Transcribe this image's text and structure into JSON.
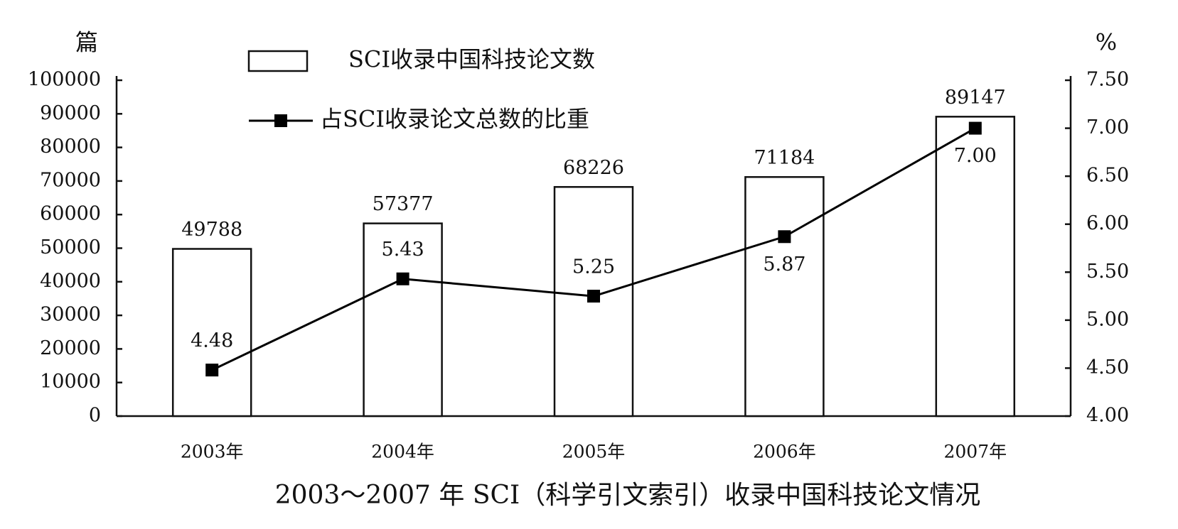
{
  "chart_data": {
    "type": "bar",
    "title": "2003～2007 年 SCI（科学引文索引）收录中国科技论文情况",
    "y_label": "篇",
    "y2_label": "%",
    "categories": [
      "2003年",
      "2004年",
      "2005年",
      "2006年",
      "2007年"
    ],
    "series": [
      {
        "name": "SCI收录中国科技论文数",
        "color": "#ffffff",
        "values": [
          49788,
          57377,
          68226,
          71184,
          89147
        ]
      },
      {
        "name": "占SCI收录论文总数的比重",
        "type": "line",
        "axis": "y2",
        "color": "#000000",
        "values": [
          4.48,
          5.43,
          5.25,
          5.87,
          7.0
        ],
        "value_labels": [
          "4.48",
          "5.43",
          "5.25",
          "5.87",
          "7.00"
        ]
      }
    ],
    "ylim": [
      0,
      100000
    ],
    "yticks": [
      0,
      10000,
      20000,
      30000,
      40000,
      50000,
      60000,
      70000,
      80000,
      90000,
      100000
    ],
    "y2lim": [
      4,
      7.5
    ],
    "y2ticks": [
      {
        "value": 4,
        "label": "4.00"
      },
      {
        "value": 4.5,
        "label": "4.50"
      },
      {
        "value": 5,
        "label": "5.00"
      },
      {
        "value": 5.5,
        "label": "5.50"
      },
      {
        "value": 6,
        "label": "6.00"
      },
      {
        "value": 6.5,
        "label": "6.50"
      },
      {
        "value": 7,
        "label": "7.00"
      },
      {
        "value": 7.5,
        "label": "7.50"
      }
    ],
    "legend": "upper left",
    "grid": false
  }
}
